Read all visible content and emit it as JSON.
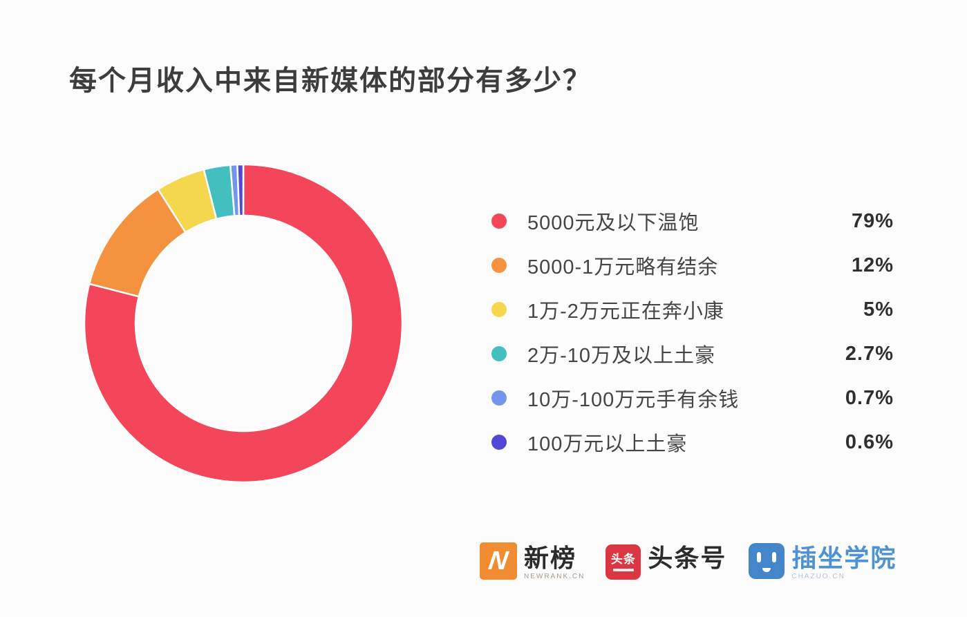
{
  "chart_data": {
    "type": "pie",
    "variant": "donut",
    "title": "每个月收入中来自新媒体的部分有多少？",
    "labels": [
      "5000元及以下温饱",
      "5000-1万元略有结余",
      "1万-2万元正在奔小康",
      "2万-10万及以上土豪",
      "10万-100万元手有余钱",
      "100万元以上土豪"
    ],
    "values": [
      79,
      12,
      5,
      2.7,
      0.7,
      0.6
    ],
    "value_labels": [
      "79%",
      "12%",
      "5%",
      "2.7%",
      "0.7%",
      "0.6%"
    ],
    "colors": [
      "#f4465a",
      "#f5923f",
      "#f5d74e",
      "#43bfc0",
      "#7495ec",
      "#5248d4"
    ],
    "start_angle": "top",
    "direction": "clockwise",
    "inner_radius_ratio": 0.68,
    "segment_gap_color": "#ffffff",
    "legend_position": "right",
    "legend_format": "dot label value"
  },
  "footer": {
    "logos": [
      {
        "name": "newrank",
        "icon_glyph": "N",
        "icon_bg": "#f28c33",
        "title": "新榜",
        "subtitle": "NEWRANK.CN"
      },
      {
        "name": "toutiao",
        "icon_text": "头条",
        "icon_bg": "#da3742",
        "title": "头条号"
      },
      {
        "name": "chazuo",
        "icon_bg": "#4586cb",
        "title": "插坐学院",
        "subtitle": "CHAZUO.CN"
      }
    ]
  }
}
